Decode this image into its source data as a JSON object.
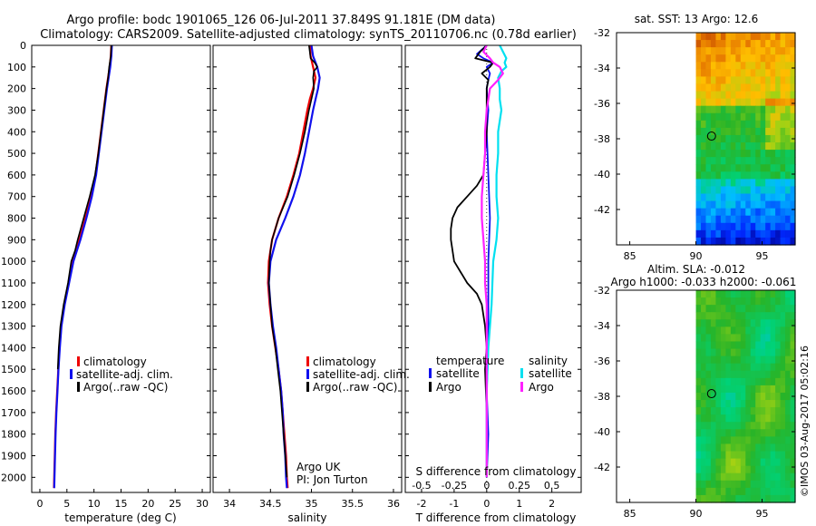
{
  "header": {
    "title": "Argo profile: bodc 1901065_126 06-Jul-2011 37.849S 91.181E (DM data)",
    "subtitle": "Climatology: CARS2009. Satellite-adjusted climatology: synTS_20110706.nc (0.78d earlier)"
  },
  "colors": {
    "climatology": "#ee0000",
    "satellite": "#1010ee",
    "argo": "#000000",
    "sat_salinity": "#00e0f0",
    "argo_salinity": "#ff20ff"
  },
  "chart_data": [
    {
      "type": "line",
      "id": "temperature",
      "xlabel": "temperature (deg C)",
      "xlim": [
        -1.5,
        31.5
      ],
      "xticks": [
        0,
        5,
        10,
        15,
        20,
        25,
        30
      ],
      "ylim": [
        2070,
        0
      ],
      "yticks": [
        0,
        100,
        200,
        300,
        400,
        500,
        600,
        700,
        800,
        900,
        1000,
        1100,
        1200,
        1300,
        1400,
        1500,
        1600,
        1700,
        1800,
        1900,
        2000
      ],
      "legend": [
        "climatology",
        "satellite-adj. clim.",
        "Argo(..raw -QC)"
      ],
      "series": [
        {
          "name": "climatology",
          "color": "#ee0000",
          "width": 2.2,
          "depth": [
            0,
            50,
            100,
            150,
            200,
            300,
            400,
            500,
            600,
            700,
            800,
            900,
            1000,
            1100,
            1200,
            1300,
            1400,
            1500,
            1600,
            1700,
            1800,
            1900,
            2000,
            2050
          ],
          "values": [
            13.2,
            13.1,
            12.9,
            12.6,
            12.3,
            11.8,
            11.3,
            10.8,
            10.3,
            9.4,
            8.4,
            7.3,
            6.0,
            5.3,
            4.5,
            3.9,
            3.6,
            3.4,
            3.2,
            3.0,
            2.85,
            2.75,
            2.65,
            2.6
          ]
        },
        {
          "name": "satellite-adj. clim.",
          "color": "#1010ee",
          "width": 2.2,
          "depth": [
            0,
            50,
            100,
            150,
            200,
            300,
            400,
            500,
            600,
            700,
            800,
            900,
            1000,
            1100,
            1200,
            1300,
            1400,
            1500,
            1600,
            1700,
            1800,
            1900,
            2000,
            2050
          ],
          "values": [
            13.3,
            13.2,
            13.0,
            12.7,
            12.4,
            11.9,
            11.4,
            10.9,
            10.4,
            9.6,
            8.6,
            7.5,
            6.2,
            5.4,
            4.6,
            4.0,
            3.7,
            3.45,
            3.25,
            3.05,
            2.9,
            2.8,
            2.7,
            2.65
          ]
        },
        {
          "name": "Argo(..raw -QC)",
          "color": "#000000",
          "width": 1.6,
          "depth": [
            0,
            50,
            100,
            150,
            200,
            300,
            400,
            500,
            600,
            700,
            800,
            900,
            950,
            1000,
            1100,
            1200,
            1300,
            1400,
            1500
          ],
          "values": [
            13.2,
            13.1,
            12.8,
            12.6,
            12.3,
            11.8,
            11.3,
            10.8,
            10.2,
            9.2,
            8.1,
            7.0,
            6.5,
            5.8,
            5.2,
            4.4,
            3.8,
            3.5,
            3.3
          ]
        }
      ]
    },
    {
      "type": "line",
      "id": "salinity",
      "xlabel": "salinity",
      "xlim": [
        33.8,
        36.1
      ],
      "xticks": [
        34,
        34.5,
        35,
        35.5,
        36
      ],
      "ylim": [
        2070,
        0
      ],
      "legend": [
        "climatology",
        "satellite-adj. clim.",
        "Argo(..raw -QC)"
      ],
      "annotation": [
        "Argo UK",
        "PI: Jon Turton"
      ],
      "series": [
        {
          "name": "climatology",
          "color": "#ee0000",
          "width": 2.2,
          "depth": [
            0,
            50,
            100,
            150,
            200,
            250,
            300,
            400,
            500,
            600,
            700,
            800,
            900,
            1000,
            1100,
            1200,
            1300,
            1400,
            1500,
            1600,
            1700,
            1800,
            1900,
            2000,
            2050
          ],
          "values": [
            34.98,
            34.99,
            35.02,
            35.05,
            35.02,
            34.98,
            34.95,
            34.9,
            34.85,
            34.78,
            34.7,
            34.6,
            34.52,
            34.48,
            34.47,
            34.49,
            34.52,
            34.56,
            34.6,
            34.63,
            34.65,
            34.67,
            34.69,
            34.7,
            34.71
          ]
        },
        {
          "name": "satellite-adj. clim.",
          "color": "#1010ee",
          "width": 2.2,
          "depth": [
            0,
            50,
            100,
            150,
            200,
            250,
            300,
            400,
            500,
            600,
            700,
            800,
            900,
            1000,
            1100,
            1200,
            1300,
            1400,
            1500,
            1600,
            1700,
            1800,
            1900,
            2000,
            2050
          ],
          "values": [
            35.0,
            35.02,
            35.07,
            35.1,
            35.08,
            35.05,
            35.02,
            34.97,
            34.92,
            34.86,
            34.78,
            34.68,
            34.57,
            34.5,
            34.48,
            34.5,
            34.53,
            34.57,
            34.6,
            34.63,
            34.65,
            34.66,
            34.68,
            34.69,
            34.7
          ]
        },
        {
          "name": "Argo(..raw -QC)",
          "color": "#000000",
          "width": 1.6,
          "depth": [
            0,
            30,
            60,
            80,
            100,
            120,
            150,
            200,
            250,
            300,
            400,
            500,
            600,
            700,
            800,
            900,
            950,
            1000,
            1100,
            1200,
            1300,
            1400,
            1500,
            1600,
            1700,
            1800,
            1900,
            2000
          ],
          "values": [
            34.97,
            34.98,
            34.99,
            35.04,
            35.07,
            35.03,
            35.02,
            35.03,
            35.0,
            34.97,
            34.92,
            34.86,
            34.79,
            34.71,
            34.6,
            34.52,
            34.5,
            34.49,
            34.48,
            34.5,
            34.52,
            34.56,
            34.59,
            34.62,
            34.64,
            34.66,
            34.68,
            34.7
          ]
        }
      ]
    },
    {
      "type": "line",
      "id": "difference",
      "xlabel": "T difference from climatology",
      "xlabel_top": "S difference from climatology",
      "xlim": [
        -2.5,
        2.9
      ],
      "xticks": [
        -2,
        -1,
        0,
        1,
        2
      ],
      "top_ticks": [
        {
          "label": "-0.5",
          "x": -2.0
        },
        {
          "label": "-0.25",
          "x": -1.0
        },
        {
          "label": "0",
          "x": 0.0
        },
        {
          "label": "0.25",
          "x": 1.0
        },
        {
          "label": "0.5",
          "x": 2.0
        }
      ],
      "ylim": [
        2070,
        0
      ],
      "legend_groups": [
        {
          "title": "temperature",
          "items": [
            "satellite",
            "Argo"
          ]
        },
        {
          "title": "salinity",
          "items": [
            "satellite",
            "Argo"
          ]
        }
      ],
      "series": [
        {
          "name": "temperature satellite",
          "color": "#1010ee",
          "width": 1.8,
          "depth": [
            0,
            40,
            60,
            80,
            100,
            130,
            160,
            200,
            300,
            400,
            600,
            800,
            1000,
            1200,
            1400,
            1600,
            1800,
            2000
          ],
          "values": [
            0.0,
            -0.3,
            -0.1,
            0.2,
            0.0,
            0.1,
            0.05,
            0.0,
            0.05,
            0.0,
            0.05,
            0.1,
            0.05,
            0.05,
            0.05,
            0.0,
            0.05,
            0.0
          ]
        },
        {
          "name": "temperature Argo",
          "color": "#000000",
          "width": 1.8,
          "depth": [
            0,
            30,
            60,
            80,
            100,
            130,
            160,
            200,
            300,
            400,
            500,
            600,
            650,
            700,
            750,
            800,
            850,
            900,
            950,
            1000,
            1050,
            1100,
            1150,
            1200,
            1300,
            1400,
            1500,
            1700,
            1900,
            2000
          ],
          "values": [
            0.0,
            -0.2,
            -0.35,
            0.2,
            0.1,
            -0.15,
            0.05,
            0.0,
            0.0,
            0.0,
            -0.05,
            -0.1,
            -0.3,
            -0.6,
            -0.9,
            -1.05,
            -1.1,
            -1.1,
            -1.05,
            -1.0,
            -0.8,
            -0.6,
            -0.3,
            -0.15,
            -0.05,
            0.0,
            -0.05,
            0.0,
            0.0,
            0.0
          ]
        },
        {
          "name": "salinity satellite",
          "color": "#00e0f0",
          "width": 2.2,
          "depth": [
            0,
            30,
            60,
            80,
            100,
            120,
            150,
            200,
            250,
            300,
            400,
            500,
            600,
            700,
            800,
            900,
            1000,
            1200,
            1400,
            1600,
            1800,
            2000
          ],
          "values": [
            0.4,
            0.5,
            0.6,
            0.55,
            0.6,
            0.45,
            0.35,
            0.4,
            0.4,
            0.45,
            0.35,
            0.35,
            0.3,
            0.3,
            0.35,
            0.3,
            0.2,
            0.15,
            0.05,
            0.0,
            0.0,
            0.0
          ]
        },
        {
          "name": "salinity Argo",
          "color": "#ff20ff",
          "width": 2.2,
          "depth": [
            0,
            30,
            60,
            80,
            100,
            130,
            160,
            200,
            300,
            400,
            500,
            600,
            700,
            800,
            900,
            1000,
            1100,
            1200,
            1400,
            1600,
            1800,
            2000
          ],
          "values": [
            0.0,
            -0.1,
            0.1,
            0.2,
            0.4,
            0.5,
            0.35,
            0.1,
            0.0,
            -0.05,
            -0.05,
            -0.1,
            -0.15,
            -0.15,
            -0.1,
            -0.05,
            -0.05,
            0.0,
            0.0,
            0.0,
            0.0,
            0.0
          ]
        }
      ]
    },
    {
      "type": "heatmap",
      "id": "sst_map",
      "title": "sat. SST: 13 Argo: 12.6",
      "xlim": [
        84,
        97.5
      ],
      "ylim": [
        -44,
        -32
      ],
      "xticks": [
        85,
        90,
        95
      ],
      "yticks": [
        -32,
        -34,
        -36,
        -38,
        -40,
        -42
      ],
      "data_x_start": 90,
      "marker": {
        "lon": 91.181,
        "lat": -37.849
      }
    },
    {
      "type": "heatmap",
      "id": "sla_map",
      "title_line1": "Altim. SLA: -0.012",
      "title_line2": "Argo h1000: -0.033 h2000: -0.061",
      "xlim": [
        84,
        97.5
      ],
      "ylim": [
        -44,
        -32
      ],
      "xticks": [
        85,
        90,
        95
      ],
      "yticks": [
        -32,
        -34,
        -36,
        -38,
        -40,
        -42
      ],
      "data_x_start": 90,
      "marker": {
        "lon": 91.181,
        "lat": -37.849
      }
    }
  ],
  "credit": "©IMOS 03-Aug-2017 05:02:16"
}
